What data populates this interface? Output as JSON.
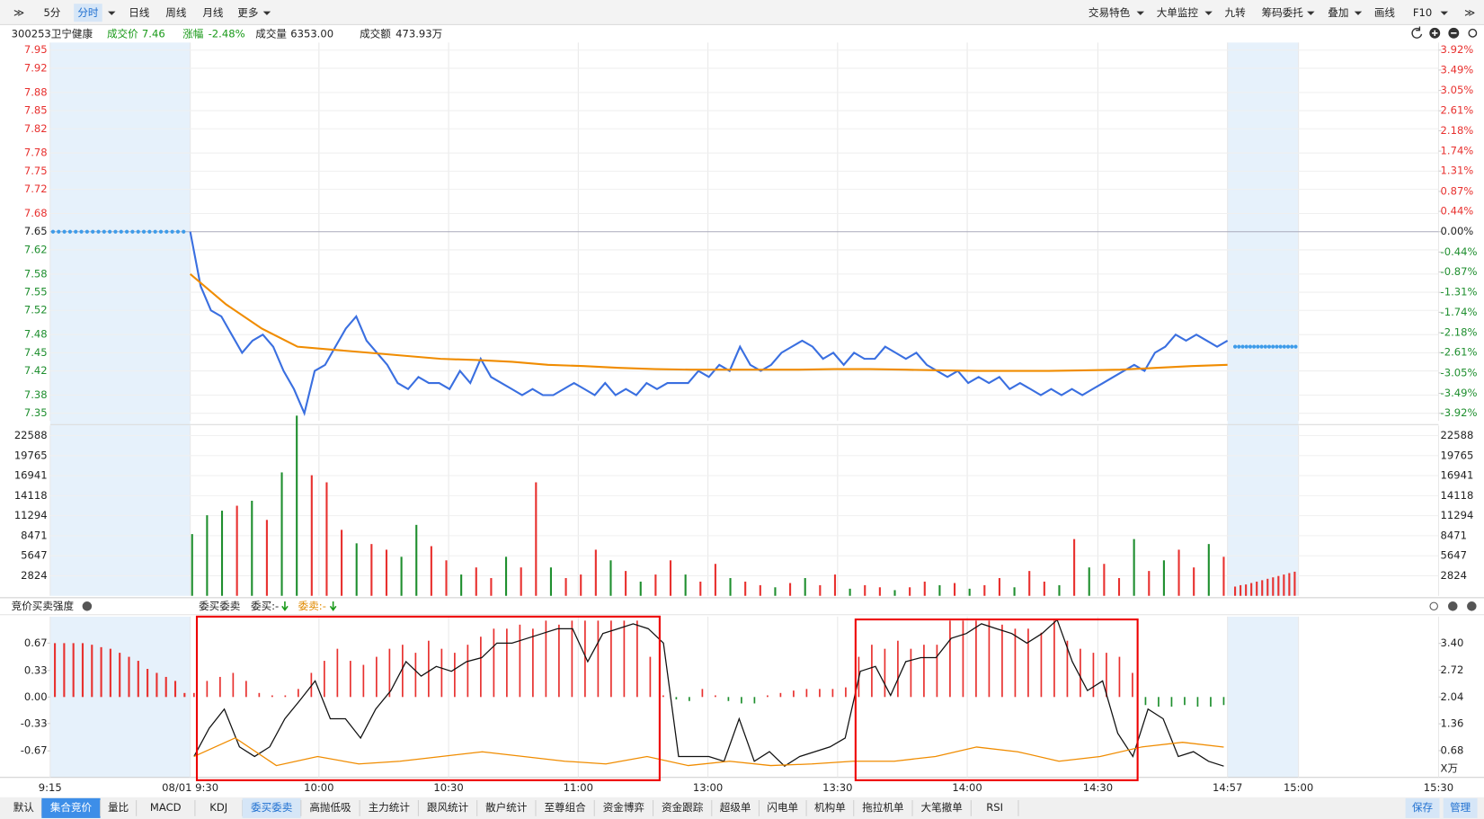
{
  "toolbar": {
    "left": [
      "5分",
      "分时",
      "日线",
      "周线",
      "月线",
      "更多"
    ],
    "right": [
      "交易特色",
      "大单监控",
      "九转",
      "筹码委托",
      "叠加",
      "画线",
      "F10"
    ]
  },
  "quote": {
    "name": "300253卫宁健康",
    "price_label": "成交价",
    "price": "7.46",
    "change_label": "涨幅",
    "change": "-2.48%",
    "volume_label": "成交量",
    "volume": "6353.00",
    "amount_label": "成交额",
    "amount": "473.93万"
  },
  "price_chart": {
    "type": "line",
    "ylim": [
      7.35,
      7.95
    ],
    "yticks": [
      7.95,
      7.92,
      7.88,
      7.85,
      7.82,
      7.78,
      7.75,
      7.72,
      7.68,
      7.65,
      7.62,
      7.58,
      7.55,
      7.52,
      7.48,
      7.45,
      7.42,
      7.38,
      7.35
    ],
    "y2lim": [
      -3.92,
      3.92
    ],
    "y2ticks": [
      {
        "value": 3.92,
        "label": "3.92%"
      },
      {
        "value": 3.49,
        "label": "3.49%"
      },
      {
        "value": 3.05,
        "label": "3.05%"
      },
      {
        "value": 2.61,
        "label": "2.61%"
      },
      {
        "value": 2.18,
        "label": "2.18%"
      },
      {
        "value": 1.74,
        "label": "1.74%"
      },
      {
        "value": 1.31,
        "label": "1.31%"
      },
      {
        "value": 0.87,
        "label": "0.87%"
      },
      {
        "value": 0.44,
        "label": "0.44%"
      },
      {
        "value": 0,
        "label": "0.00%"
      },
      {
        "value": -0.44,
        "label": "-0.44%"
      },
      {
        "value": -0.87,
        "label": "-0.87%"
      },
      {
        "value": -1.31,
        "label": "-1.31%"
      },
      {
        "value": -1.74,
        "label": "-1.74%"
      },
      {
        "value": -2.18,
        "label": "-2.18%"
      },
      {
        "value": -2.61,
        "label": "-2.61%"
      },
      {
        "value": -3.05,
        "label": "-3.05%"
      },
      {
        "value": -3.49,
        "label": "-3.49%"
      },
      {
        "value": -3.92,
        "label": "-3.92%"
      }
    ],
    "auction_price": 7.65,
    "close_auction_price": 7.46,
    "auction_color": "#3d9be9",
    "up_color": "#e8312f",
    "down_color": "#1f8f2f",
    "series": [
      {
        "color": "#3a6fe0",
        "values": [
          7.65,
          7.56,
          7.52,
          7.51,
          7.48,
          7.45,
          7.47,
          7.48,
          7.46,
          7.42,
          7.39,
          7.35,
          7.42,
          7.43,
          7.46,
          7.49,
          7.51,
          7.47,
          7.45,
          7.43,
          7.4,
          7.39,
          7.41,
          7.4,
          7.4,
          7.39,
          7.42,
          7.4,
          7.44,
          7.41,
          7.4,
          7.39,
          7.38,
          7.39,
          7.38,
          7.38,
          7.39,
          7.4,
          7.39,
          7.38,
          7.4,
          7.38,
          7.39,
          7.38,
          7.4,
          7.39,
          7.4,
          7.4,
          7.4,
          7.42,
          7.41,
          7.43,
          7.42,
          7.46,
          7.43,
          7.42,
          7.43,
          7.45,
          7.46,
          7.47,
          7.46,
          7.44,
          7.45,
          7.43,
          7.45,
          7.44,
          7.44,
          7.46,
          7.45,
          7.44,
          7.45,
          7.43,
          7.42,
          7.41,
          7.42,
          7.4,
          7.41,
          7.4,
          7.41,
          7.39,
          7.4,
          7.39,
          7.38,
          7.39,
          7.38,
          7.39,
          7.38,
          7.39,
          7.4,
          7.41,
          7.42,
          7.43,
          7.42,
          7.45,
          7.46,
          7.48,
          7.47,
          7.48,
          7.47,
          7.46,
          7.47
        ]
      },
      {
        "color": "#f08c00",
        "values": [
          7.58,
          7.53,
          7.49,
          7.46,
          7.455,
          7.45,
          7.445,
          7.44,
          7.438,
          7.435,
          7.43,
          7.428,
          7.425,
          7.423,
          7.422,
          7.422,
          7.422,
          7.422,
          7.423,
          7.423,
          7.422,
          7.421,
          7.42,
          7.42,
          7.42,
          7.421,
          7.422,
          7.425,
          7.428,
          7.43
        ]
      }
    ]
  },
  "volume_chart": {
    "type": "bar",
    "ylim": [
      0,
      24000
    ],
    "yticks": [
      22588,
      19765,
      16941,
      14118,
      11294,
      8471,
      5647,
      2824
    ],
    "values": [
      8700,
      11360,
      12000,
      12700,
      13400,
      10700,
      17400,
      25400,
      17000,
      16000,
      9300,
      7400,
      7300,
      6500,
      5500,
      10000,
      7000,
      5000,
      3000,
      4000,
      2500,
      5500,
      4000,
      16000,
      4000,
      2500,
      3000,
      6500,
      5000,
      3500,
      2000,
      3000,
      5000,
      3000,
      2000,
      4500,
      2500,
      2000,
      1500,
      1200,
      1800,
      2500,
      1500,
      3000,
      1000,
      1500,
      1200,
      800,
      1200,
      2000,
      1500,
      1800,
      1000,
      1500,
      2500,
      1200,
      3500,
      2000,
      1500,
      8000,
      4000,
      4500,
      2500,
      8000,
      3500,
      5000,
      6500,
      4000,
      7300,
      5500
    ],
    "colors": [
      "#1f8f2f",
      "#1f8f2f",
      "#1f8f2f",
      "#e8312f",
      "#1f8f2f",
      "#e8312f",
      "#1f8f2f",
      "#1f8f2f",
      "#e8312f",
      "#e8312f",
      "#e8312f",
      "#1f8f2f",
      "#e8312f",
      "#e8312f",
      "#1f8f2f",
      "#1f8f2f",
      "#e8312f",
      "#e8312f",
      "#1f8f2f",
      "#e8312f",
      "#e8312f",
      "#1f8f2f",
      "#e8312f",
      "#e8312f",
      "#1f8f2f",
      "#e8312f",
      "#e8312f",
      "#e8312f",
      "#1f8f2f",
      "#e8312f",
      "#1f8f2f",
      "#e8312f",
      "#e8312f",
      "#1f8f2f",
      "#e8312f",
      "#e8312f",
      "#1f8f2f",
      "#e8312f",
      "#e8312f",
      "#1f8f2f",
      "#e8312f",
      "#1f8f2f",
      "#e8312f",
      "#e8312f",
      "#1f8f2f",
      "#e8312f",
      "#e8312f",
      "#1f8f2f",
      "#e8312f",
      "#e8312f",
      "#1f8f2f",
      "#e8312f",
      "#1f8f2f",
      "#e8312f",
      "#e8312f",
      "#1f8f2f",
      "#e8312f",
      "#e8312f",
      "#1f8f2f",
      "#e8312f",
      "#1f8f2f",
      "#e8312f",
      "#e8312f",
      "#1f8f2f",
      "#e8312f",
      "#1f8f2f",
      "#e8312f",
      "#e8312f",
      "#1f8f2f",
      "#e8312f"
    ],
    "close_auction_values": [
      1300,
      1500,
      1600,
      1800,
      2000,
      2200,
      2400,
      2600,
      2800,
      3000,
      3200,
      3400
    ],
    "close_auction_color": "#e8312f"
  },
  "indicator": {
    "title": "竞价买卖强度",
    "name": "委买委卖",
    "buy_label": "委买:-",
    "sell_label": "委卖:-",
    "unit": "X万",
    "ylim": [
      -1,
      1
    ],
    "yticks": [
      0.67,
      0.33,
      {
        "value": 0,
        "label": "0.00"
      },
      -0.33,
      -0.67
    ],
    "y2lim": [
      0,
      4.08
    ],
    "y2ticks": [
      {
        "value": 3.4,
        "label": "3.40"
      },
      2.72,
      2.04,
      1.36,
      0.68
    ],
    "up_color": "#e8312f",
    "down_color": "#1f8f2f",
    "auction_bars": [
      0.67,
      0.67,
      0.67,
      0.67,
      0.65,
      0.62,
      0.6,
      0.55,
      0.5,
      0.45,
      0.35,
      0.3,
      0.25,
      0.2,
      0.05
    ],
    "bars": [
      0.05,
      0.2,
      0.25,
      0.3,
      0.2,
      0.05,
      0.02,
      0.02,
      0.1,
      0.3,
      0.45,
      0.6,
      0.45,
      0.4,
      0.5,
      0.6,
      0.65,
      0.55,
      0.7,
      0.6,
      0.55,
      0.65,
      0.75,
      0.85,
      0.85,
      0.9,
      0.85,
      0.95,
      0.9,
      0.95,
      0.95,
      0.95,
      0.95,
      0.95,
      0.95,
      0.5,
      0.02,
      -0.03,
      -0.05,
      0.1,
      0.02,
      -0.05,
      -0.08,
      -0.08,
      0.02,
      0.05,
      0.08,
      0.1,
      0.1,
      0.1,
      0.12,
      0.5,
      0.65,
      0.6,
      0.7,
      0.6,
      0.65,
      0.65,
      0.95,
      0.95,
      0.95,
      0.95,
      0.9,
      0.85,
      0.85,
      0.8,
      0.95,
      0.7,
      0.6,
      0.55,
      0.55,
      0.5,
      0.3,
      -0.1,
      -0.12,
      -0.12,
      -0.1,
      -0.12,
      -0.12,
      -0.1
    ],
    "series": [
      {
        "color": "#111111",
        "values": [
          -0.74,
          -0.39,
          -0.15,
          -0.62,
          -0.74,
          -0.62,
          -0.27,
          -0.04,
          0.2,
          -0.27,
          -0.27,
          -0.51,
          -0.15,
          0.08,
          0.44,
          0.26,
          0.38,
          0.32,
          0.44,
          0.49,
          0.67,
          0.67,
          0.73,
          0.79,
          0.85,
          0.85,
          0.44,
          0.79,
          0.85,
          0.91,
          0.85,
          0.67,
          -0.74,
          -0.74,
          -0.74,
          -0.8,
          -0.27,
          -0.8,
          -0.68,
          -0.86,
          -0.74,
          -0.68,
          -0.62,
          -0.51,
          0.32,
          0.38,
          0.02,
          0.44,
          0.49,
          0.49,
          0.73,
          0.79,
          0.91,
          0.85,
          0.79,
          0.67,
          0.79,
          0.96,
          0.44,
          0.08,
          0.2,
          -0.45,
          -0.74,
          -0.15,
          -0.27,
          -0.74,
          -0.68,
          -0.8,
          -0.86
        ]
      },
      {
        "color": "#f08c00",
        "axis": "y2",
        "values": [
          0.53,
          1.0,
          0.3,
          0.53,
          0.34,
          0.41,
          0.53,
          0.65,
          0.53,
          0.41,
          0.34,
          0.53,
          0.3,
          0.41,
          0.3,
          0.34,
          0.41,
          0.41,
          0.53,
          0.77,
          0.65,
          0.41,
          0.53,
          0.77,
          0.89,
          0.77
        ]
      }
    ]
  },
  "time_axis": [
    "9:15",
    "08/01 9:30",
    "10:00",
    "10:30",
    "11:00",
    "13:00",
    "13:30",
    "14:00",
    "14:30",
    "14:57",
    "15:00",
    "15:30"
  ],
  "tabs": {
    "items": [
      "默认",
      "集合竞价",
      "量比",
      "MACD",
      "KDJ",
      "委买委卖",
      "高抛低吸",
      "主力统计",
      "跟风统计",
      "散户统计",
      "至尊组合",
      "资金博弈",
      "资金跟踪",
      "超级单",
      "闪电单",
      "机构单",
      "拖拉机单",
      "大笔撤单",
      "RSI"
    ],
    "right": [
      "保存",
      "管理"
    ]
  }
}
